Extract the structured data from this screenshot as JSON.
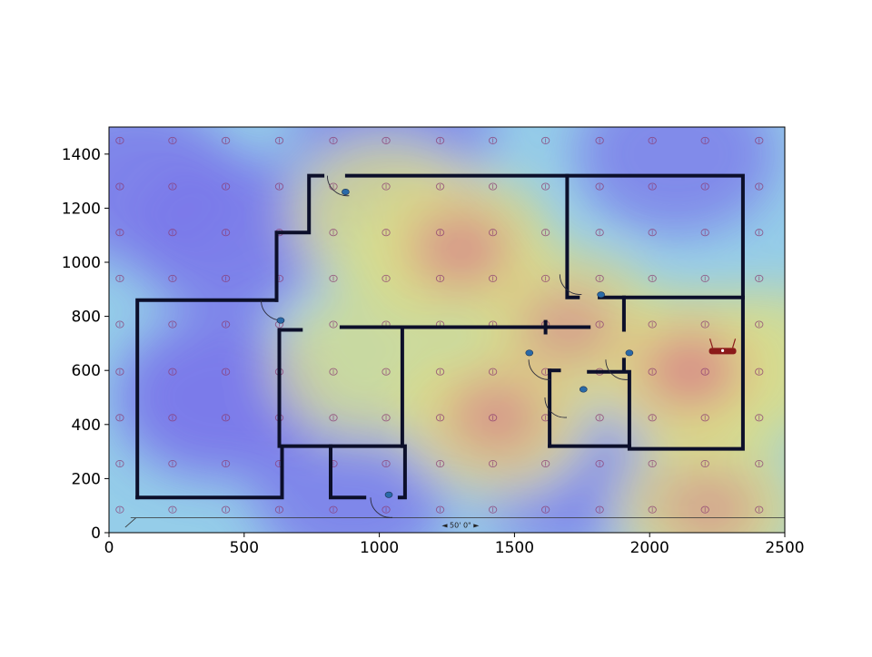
{
  "chart_data": {
    "type": "heatmap",
    "title": "",
    "xlabel": "",
    "ylabel": "",
    "xlim": [
      0,
      2500
    ],
    "ylim": [
      0,
      1500
    ],
    "xticks": [
      0,
      500,
      1000,
      1500,
      2000,
      2500
    ],
    "yticks": [
      0,
      200,
      400,
      600,
      800,
      1000,
      1200,
      1400
    ],
    "xtick_labels": [
      "0",
      "500",
      "1000",
      "1500",
      "2000",
      "2500"
    ],
    "ytick_labels": [
      "0",
      "200",
      "400",
      "600",
      "800",
      "1000",
      "1200",
      "1400"
    ],
    "colormap": [
      "#0000ff",
      "#00ffff",
      "#ffff00",
      "#ff0000"
    ],
    "overlay": "floor plan",
    "scale_label": "◄ 50' 0\" ►",
    "heat_hotspots": [
      {
        "x": 1300,
        "y": 1050,
        "intensity": 0.9
      },
      {
        "x": 2150,
        "y": 600,
        "intensity": 1.0
      },
      {
        "x": 1430,
        "y": 430,
        "intensity": 0.85
      },
      {
        "x": 1700,
        "y": 760,
        "intensity": 0.75
      },
      {
        "x": 2220,
        "y": 90,
        "intensity": 0.7
      },
      {
        "x": 1020,
        "y": 1170,
        "intensity": 0.55
      },
      {
        "x": 950,
        "y": 620,
        "intensity": 0.45
      },
      {
        "x": 2450,
        "y": 620,
        "intensity": 0.55
      }
    ],
    "heat_coldspots": [
      {
        "x": 400,
        "y": 500,
        "intensity": 0.9
      },
      {
        "x": 450,
        "y": 1100,
        "intensity": 0.8
      },
      {
        "x": 100,
        "y": 1300,
        "intensity": 0.7
      },
      {
        "x": 900,
        "y": 160,
        "intensity": 0.6
      },
      {
        "x": 1700,
        "y": 230,
        "intensity": 0.55
      },
      {
        "x": 2100,
        "y": 1400,
        "intensity": 0.5
      },
      {
        "x": 1050,
        "y": 1450,
        "intensity": 0.5
      }
    ],
    "sample_points": {
      "x": [
        40,
        235,
        432,
        630,
        830,
        1025,
        1225,
        1420,
        1615,
        1815,
        2010,
        2205,
        2405
      ],
      "y": [
        85,
        255,
        425,
        595,
        770,
        940,
        1110,
        1280,
        1450
      ]
    },
    "access_point": {
      "x": 2270,
      "y": 670,
      "color": "#8b1a1a"
    },
    "walls": [
      [
        [
          105,
          130
        ],
        [
          105,
          860
        ],
        [
          620,
          860
        ]
      ],
      [
        [
          105,
          130
        ],
        [
          640,
          130
        ],
        [
          640,
          320
        ],
        [
          1095,
          320
        ],
        [
          1095,
          130
        ],
        [
          1075,
          130
        ]
      ],
      [
        [
          630,
          320
        ],
        [
          630,
          750
        ],
        [
          710,
          750
        ]
      ],
      [
        [
          620,
          860
        ],
        [
          620,
          1110
        ],
        [
          740,
          1110
        ],
        [
          740,
          1320
        ],
        [
          790,
          1320
        ]
      ],
      [
        [
          880,
          1320
        ],
        [
          1695,
          1320
        ],
        [
          1695,
          870
        ],
        [
          1735,
          870
        ]
      ],
      [
        [
          1695,
          1320
        ],
        [
          2345,
          1320
        ],
        [
          2345,
          310
        ],
        [
          1925,
          310
        ],
        [
          1925,
          595
        ],
        [
          1775,
          595
        ]
      ],
      [
        [
          860,
          760
        ],
        [
          1775,
          760
        ]
      ],
      [
        [
          1085,
          760
        ],
        [
          1085,
          320
        ]
      ],
      [
        [
          820,
          320
        ],
        [
          820,
          130
        ],
        [
          945,
          130
        ]
      ],
      [
        [
          1630,
          320
        ],
        [
          1630,
          600
        ]
      ],
      [
        [
          1630,
          320
        ],
        [
          1925,
          320
        ]
      ],
      [
        [
          1630,
          600
        ],
        [
          1665,
          600
        ]
      ],
      [
        [
          1615,
          780
        ],
        [
          1615,
          740
        ]
      ],
      [
        [
          1815,
          870
        ],
        [
          2345,
          870
        ]
      ],
      [
        [
          1905,
          870
        ],
        [
          1905,
          750
        ]
      ],
      [
        [
          1905,
          640
        ],
        [
          1905,
          600
        ]
      ]
    ],
    "door_icons": [
      {
        "x": 875,
        "y": 1260,
        "color": "#2a6aa8"
      },
      {
        "x": 635,
        "y": 785,
        "color": "#2a6aa8"
      },
      {
        "x": 1035,
        "y": 140,
        "color": "#2a6aa8"
      },
      {
        "x": 1555,
        "y": 665,
        "color": "#2a6aa8"
      },
      {
        "x": 1755,
        "y": 530,
        "color": "#2a6aa8"
      },
      {
        "x": 1820,
        "y": 880,
        "color": "#2a6aa8"
      },
      {
        "x": 1925,
        "y": 665,
        "color": "#2a6aa8"
      }
    ]
  }
}
